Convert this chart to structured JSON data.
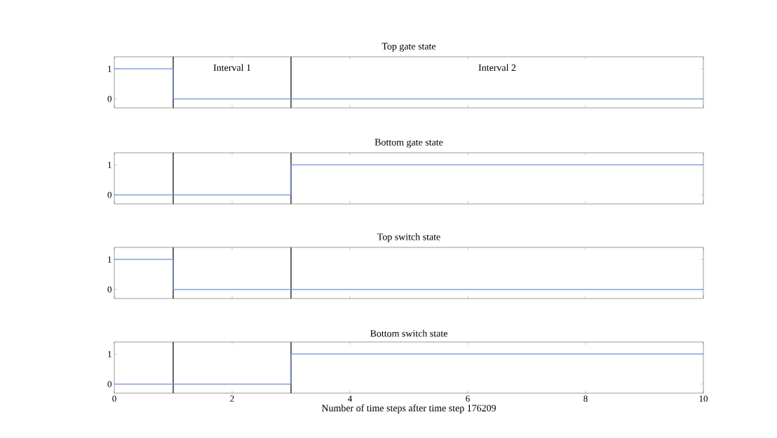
{
  "chart_data": [
    {
      "type": "step",
      "title": "Top gate state",
      "x": [
        0,
        1,
        10
      ],
      "values": [
        1,
        0,
        0
      ],
      "color": "#6f8fd8",
      "xlim": [
        0,
        10
      ],
      "ylim": [
        -0.3,
        1.4
      ],
      "xticks": [
        0,
        2,
        4,
        6,
        8,
        10
      ],
      "yticks": [
        0,
        1
      ],
      "tick_labels": "y",
      "grid": false,
      "ref_lines": [
        {
          "axis": "x",
          "value": 1,
          "color": "#000000"
        },
        {
          "axis": "x",
          "value": 3,
          "color": "#000000"
        }
      ],
      "annotations": [
        "Interval 1",
        "Interval 2"
      ]
    },
    {
      "type": "step",
      "title": "Bottom gate state",
      "x": [
        0,
        3,
        10
      ],
      "values": [
        0,
        1,
        1
      ],
      "color": "#6f8fd8",
      "xlim": [
        0,
        10
      ],
      "ylim": [
        -0.3,
        1.4
      ],
      "xticks": [
        0,
        2,
        4,
        6,
        8,
        10
      ],
      "yticks": [
        0,
        1
      ],
      "tick_labels": "y",
      "grid": false,
      "ref_lines": [
        {
          "axis": "x",
          "value": 1,
          "color": "#000000"
        },
        {
          "axis": "x",
          "value": 3,
          "color": "#000000"
        }
      ]
    },
    {
      "type": "step",
      "title": "Top switch state",
      "x": [
        0,
        1,
        10
      ],
      "values": [
        1,
        0,
        0
      ],
      "color": "#6f8fd8",
      "xlim": [
        0,
        10
      ],
      "ylim": [
        -0.3,
        1.4
      ],
      "xticks": [
        0,
        2,
        4,
        6,
        8,
        10
      ],
      "yticks": [
        0,
        1
      ],
      "tick_labels": "y",
      "grid": false,
      "ref_lines": [
        {
          "axis": "x",
          "value": 1,
          "color": "#000000"
        },
        {
          "axis": "x",
          "value": 3,
          "color": "#000000"
        }
      ]
    },
    {
      "type": "step",
      "title": "Bottom switch state",
      "xlabel": "Number of time steps after time step 176209",
      "x": [
        0,
        3,
        10
      ],
      "values": [
        0,
        1,
        1
      ],
      "color": "#6f8fd8",
      "xlim": [
        0,
        10
      ],
      "ylim": [
        -0.3,
        1.4
      ],
      "xticks": [
        0,
        2,
        4,
        6,
        8,
        10
      ],
      "yticks": [
        0,
        1
      ],
      "grid": false,
      "ref_lines": [
        {
          "axis": "x",
          "value": 1,
          "color": "#000000"
        },
        {
          "axis": "x",
          "value": 3,
          "color": "#000000"
        }
      ]
    }
  ]
}
